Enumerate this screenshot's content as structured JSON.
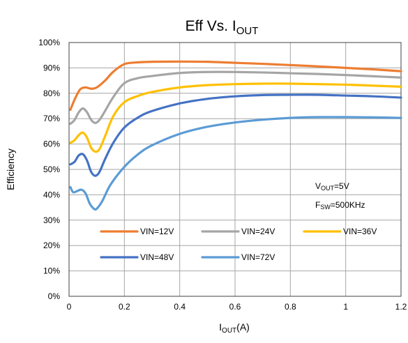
{
  "chart_data": {
    "type": "line",
    "title": {
      "main": "Eff Vs. I",
      "sub": "OUT"
    },
    "xlabel": {
      "main": "I",
      "sub": "OUT",
      "suffix": "(A)"
    },
    "ylabel": "Efficiency",
    "xlim": [
      0,
      1.2
    ],
    "ylim": [
      0,
      100
    ],
    "x_ticks": [
      0,
      0.2,
      0.4,
      0.6,
      0.8,
      1,
      1.2
    ],
    "x_tick_labels": [
      "0",
      "0.2",
      "0.4",
      "0.6",
      "0.8",
      "1",
      "1.2"
    ],
    "y_ticks": [
      0,
      10,
      20,
      30,
      40,
      50,
      60,
      70,
      80,
      90,
      100
    ],
    "y_tick_labels": [
      "0%",
      "10%",
      "20%",
      "30%",
      "40%",
      "50%",
      "60%",
      "70%",
      "80%",
      "90%",
      "100%"
    ],
    "grid": true,
    "annotations": [
      {
        "main": "V",
        "sub": "OUT",
        "suffix": "=5V"
      },
      {
        "main": "F",
        "sub": "SW",
        "suffix": "=500KHz"
      }
    ],
    "series": [
      {
        "name": "VIN=12V",
        "color": "#ED7D31",
        "x": [
          0.005,
          0.02,
          0.04,
          0.06,
          0.08,
          0.1,
          0.13,
          0.16,
          0.2,
          0.25,
          0.3,
          0.4,
          0.5,
          0.6,
          0.7,
          0.8,
          0.9,
          1.0,
          1.1,
          1.2
        ],
        "y": [
          73.5,
          77.5,
          81.5,
          82.3,
          81.8,
          82.3,
          85,
          88.5,
          91.5,
          92.2,
          92.4,
          92.5,
          92.4,
          92,
          91.6,
          91.1,
          90.6,
          90,
          89.4,
          88.7
        ]
      },
      {
        "name": "VIN=24V",
        "color": "#A5A5A5",
        "x": [
          0.005,
          0.02,
          0.035,
          0.05,
          0.065,
          0.08,
          0.095,
          0.11,
          0.13,
          0.16,
          0.2,
          0.25,
          0.3,
          0.4,
          0.5,
          0.6,
          0.7,
          0.8,
          0.9,
          1.0,
          1.1,
          1.2
        ],
        "y": [
          68,
          69.5,
          72.5,
          74,
          72.5,
          69.5,
          68.3,
          69.5,
          73,
          78.5,
          84,
          86,
          86.8,
          88,
          88.4,
          88.4,
          88.2,
          87.9,
          87.6,
          87.2,
          86.7,
          86.2
        ]
      },
      {
        "name": "VIN=36V",
        "color": "#FFC000",
        "x": [
          0.005,
          0.02,
          0.035,
          0.05,
          0.065,
          0.08,
          0.095,
          0.11,
          0.13,
          0.16,
          0.2,
          0.25,
          0.3,
          0.4,
          0.5,
          0.6,
          0.7,
          0.8,
          0.9,
          1.0,
          1.1,
          1.2
        ],
        "y": [
          60.5,
          61.5,
          63.5,
          64.5,
          62.5,
          58.5,
          57,
          58,
          63,
          71,
          76.5,
          79,
          80.5,
          82.3,
          83.2,
          83.6,
          83.8,
          83.8,
          83.6,
          83.4,
          83,
          82.6
        ]
      },
      {
        "name": "VIN=48V",
        "color": "#4472C4",
        "x": [
          0.005,
          0.02,
          0.035,
          0.05,
          0.065,
          0.08,
          0.095,
          0.11,
          0.13,
          0.16,
          0.2,
          0.25,
          0.3,
          0.4,
          0.5,
          0.6,
          0.7,
          0.8,
          0.9,
          1.0,
          1.1,
          1.2
        ],
        "y": [
          52,
          53,
          55.5,
          56,
          53.5,
          49,
          47.5,
          49,
          54,
          60.5,
          66.5,
          70.5,
          73,
          76,
          77.8,
          78.8,
          79.3,
          79.4,
          79.4,
          79.1,
          78.8,
          78.3
        ]
      },
      {
        "name": "VIN=72V",
        "color": "#5B9BD5",
        "x": [
          0.005,
          0.015,
          0.03,
          0.045,
          0.06,
          0.075,
          0.09,
          0.1,
          0.12,
          0.15,
          0.2,
          0.25,
          0.3,
          0.4,
          0.5,
          0.6,
          0.7,
          0.8,
          0.9,
          1.0,
          1.1,
          1.2
        ],
        "y": [
          43,
          41,
          41.5,
          42,
          40.5,
          36.5,
          34.5,
          34.5,
          37.5,
          44,
          51,
          56,
          59.5,
          64,
          66.8,
          68.5,
          69.6,
          70.3,
          70.6,
          70.6,
          70.5,
          70.3
        ]
      }
    ]
  }
}
